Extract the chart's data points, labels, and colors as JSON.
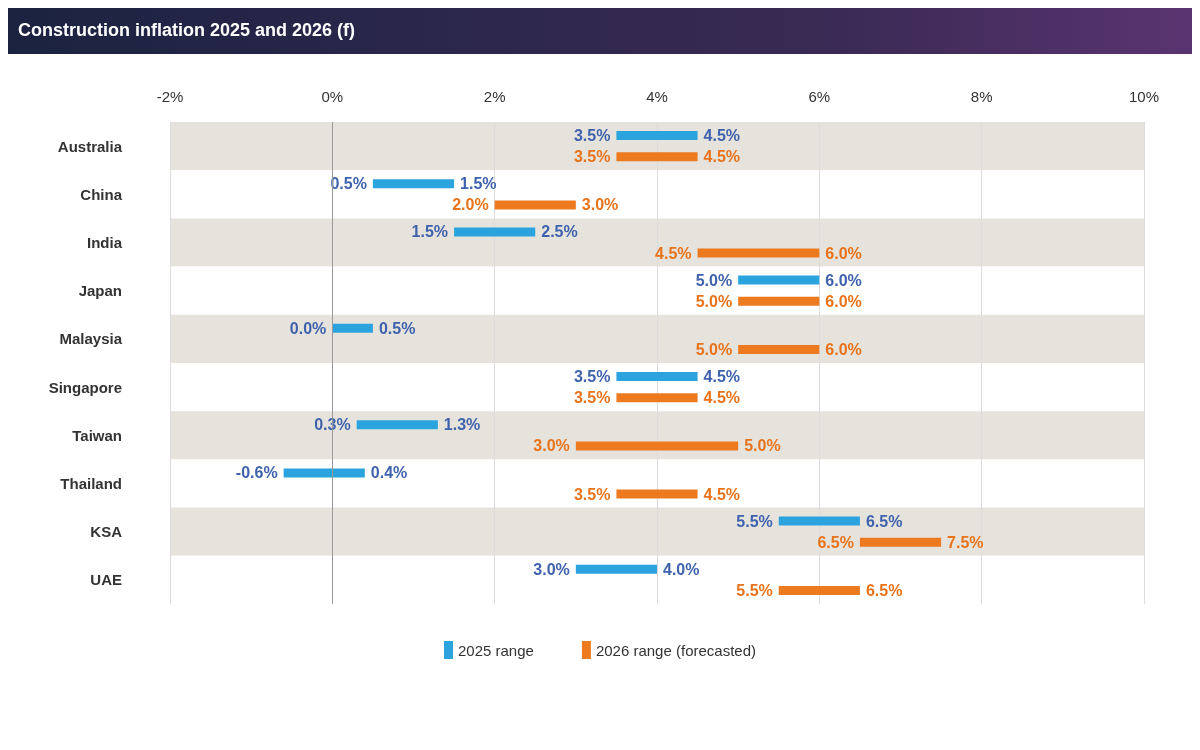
{
  "chart_data": {
    "type": "bar",
    "orientation": "horizontal",
    "title": "Construction inflation 2025 and 2026 (f)",
    "categories": [
      "Australia",
      "China",
      "India",
      "Japan",
      "Malaysia",
      "Singapore",
      "Taiwan",
      "Thailand",
      "KSA",
      "UAE"
    ],
    "series": [
      {
        "name": "2025 range",
        "color": "#2aa3df",
        "base": [
          3.5,
          0.5,
          1.5,
          5.0,
          0.0,
          3.5,
          0.3,
          -0.6,
          5.5,
          3.0
        ],
        "values": [
          1.0,
          1.0,
          1.0,
          1.0,
          0.5,
          1.0,
          1.0,
          1.0,
          1.0,
          1.0
        ],
        "value_labels": [
          [
            "3.5%",
            "4.5%"
          ],
          [
            "0.5%",
            "1.5%"
          ],
          [
            "1.5%",
            "2.5%"
          ],
          [
            "5.0%",
            "6.0%"
          ],
          [
            "0.0%",
            "0.5%"
          ],
          [
            "3.5%",
            "4.5%"
          ],
          [
            "0.3%",
            "1.3%"
          ],
          [
            "-0.6%",
            "0.4%"
          ],
          [
            "5.5%",
            "6.5%"
          ],
          [
            "3.0%",
            "4.0%"
          ]
        ]
      },
      {
        "name": "2026 range (forecasted)",
        "color": "#ee7a1f",
        "base": [
          3.5,
          2.0,
          4.5,
          5.0,
          5.0,
          3.5,
          3.0,
          3.5,
          6.5,
          5.5
        ],
        "values": [
          1.0,
          1.0,
          1.5,
          1.0,
          1.0,
          1.0,
          2.0,
          1.0,
          1.0,
          1.0
        ],
        "value_labels": [
          [
            "3.5%",
            "4.5%"
          ],
          [
            "2.0%",
            "3.0%"
          ],
          [
            "4.5%",
            "6.0%"
          ],
          [
            "5.0%",
            "6.0%"
          ],
          [
            "5.0%",
            "6.0%"
          ],
          [
            "3.5%",
            "4.5%"
          ],
          [
            "3.0%",
            "5.0%"
          ],
          [
            "3.5%",
            "4.5%"
          ],
          [
            "6.5%",
            "7.5%"
          ],
          [
            "5.5%",
            "6.5%"
          ]
        ]
      }
    ],
    "xlim": [
      -2,
      10
    ],
    "xticks": [
      {
        "value": -2,
        "label": "-2%"
      },
      {
        "value": 0,
        "label": "0%"
      },
      {
        "value": 2,
        "label": "2%"
      },
      {
        "value": 4,
        "label": "4%"
      },
      {
        "value": 6,
        "label": "6%"
      },
      {
        "value": 8,
        "label": "8%"
      },
      {
        "value": 10,
        "label": "10%"
      }
    ],
    "ref_lines": [
      {
        "axis": "x",
        "value": 0,
        "color": "#9a9a9a"
      }
    ],
    "grid": "x",
    "legend": "bottom"
  }
}
